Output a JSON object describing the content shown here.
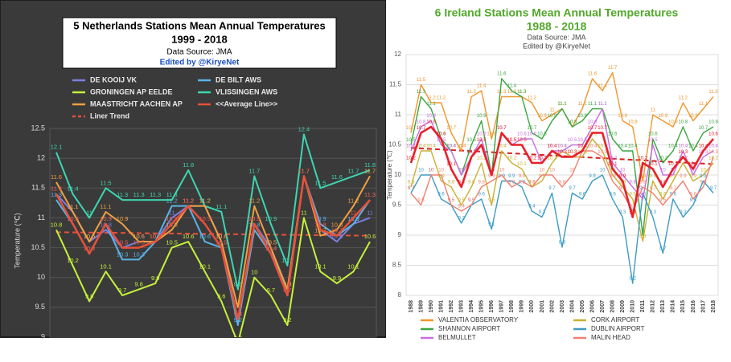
{
  "chart_data": [
    {
      "type": "line",
      "title": "5 Netherlands Stations Mean Annual Temperatures",
      "subtitle": "1999 - 2018",
      "source": "Data Source: JMA",
      "credit": "Edited by @KiryeNet",
      "ylabel": "Temperature (℃)",
      "categories": [
        null,
        null,
        null,
        null,
        null,
        null,
        null,
        null,
        null,
        null,
        null,
        null,
        null,
        null,
        null,
        null,
        null,
        null,
        null,
        null
      ],
      "ylim": [
        9,
        12.5
      ],
      "yticks": [
        9,
        9.5,
        10,
        10.5,
        11,
        11.5,
        12,
        12.5
      ],
      "grid": true,
      "legend_position": "top",
      "series": [
        {
          "name": "DE KOOIJ VK",
          "color": "#7b7fe0",
          "values": [
            11.4,
            11.1,
            10.6,
            10.8,
            10.5,
            10.6,
            10.6,
            11.0,
            11.2,
            11.2,
            10.6,
            9.3,
            10.9,
            10.5,
            9.7,
            11.7,
            10.8,
            10.6,
            10.9,
            11.0
          ]
        },
        {
          "name": "DE BILT AWS",
          "color": "#5ab4e6",
          "values": [
            11.3,
            10.9,
            10.4,
            10.9,
            10.3,
            10.3,
            10.6,
            11.2,
            11.2,
            10.6,
            10.5,
            9.2,
            10.8,
            10.4,
            9.8,
            11.7,
            10.9,
            10.7,
            10.9,
            11.3
          ]
        },
        {
          "name": "GRONINGEN AP EELDE",
          "color": "#c6f03c",
          "values": [
            10.8,
            10.2,
            9.6,
            10.1,
            9.7,
            9.8,
            9.9,
            10.5,
            10.6,
            10.1,
            9.6,
            8.9,
            10.0,
            9.7,
            9.2,
            11.0,
            10.1,
            9.9,
            10.1,
            10.6
          ]
        },
        {
          "name": "VLISSINGEN AWS",
          "color": "#3dd6b0",
          "values": [
            12.1,
            11.4,
            11.0,
            11.5,
            11.3,
            11.3,
            11.3,
            11.3,
            11.8,
            11.2,
            11.1,
            9.8,
            11.7,
            10.9,
            10.2,
            12.4,
            11.5,
            11.6,
            11.7,
            11.8
          ]
        },
        {
          "name": "MAASTRICHT AACHEN AP",
          "color": "#f0a040",
          "values": [
            11.6,
            11.1,
            10.6,
            11.1,
            10.9,
            10.6,
            10.6,
            10.8,
            11.2,
            11.2,
            10.6,
            9.5,
            11.2,
            10.5,
            9.8,
            11.7,
            10.7,
            10.8,
            11.2,
            11.7
          ]
        },
        {
          "name": "<<Average Line>>",
          "color": "#e8503a",
          "values": [
            11.4,
            10.9,
            10.4,
            10.9,
            10.5,
            10.5,
            10.6,
            10.9,
            11.2,
            10.9,
            10.5,
            9.3,
            10.9,
            10.4,
            9.7,
            11.7,
            10.8,
            10.7,
            11.0,
            11.3
          ]
        }
      ],
      "trend": {
        "name": "Liner Trend",
        "color": "#e8503a",
        "values": [
          10.76,
          10.7
        ]
      }
    },
    {
      "type": "line",
      "title": "6 Ireland Stations Mean Annual Temperatures",
      "subtitle": "1988 - 2018",
      "source": "Data Source: JMA",
      "credit": "Edited by @KiryeNet",
      "ylabel": "Temperature (℃)",
      "categories": [
        "1988",
        "1989",
        "1990",
        "1991",
        "1992",
        "1993",
        "1994",
        "1995",
        "1996",
        "1997",
        "1998",
        "1999",
        "2000",
        "2001",
        "2002",
        "2003",
        "2004",
        "2005",
        "2006",
        "2007",
        "2008",
        "2009",
        "2010",
        "2011",
        "2012",
        "2013",
        "2014",
        "2015",
        "2016",
        "2017",
        "2018"
      ],
      "ylim": [
        8,
        12
      ],
      "yticks": [
        8,
        8.5,
        9,
        9.5,
        10,
        10.5,
        11,
        11.5,
        12
      ],
      "grid": true,
      "legend_position": "bottom",
      "series": [
        {
          "name": "VALENTIA OBSERVATORY",
          "color": "#f0962c",
          "values": [
            10.7,
            11.5,
            11.2,
            11.2,
            10.7,
            10.4,
            11.3,
            11.4,
            10.6,
            11.3,
            11.3,
            11.3,
            11.2,
            10.9,
            11.0,
            11.1,
            10.8,
            11.1,
            11.6,
            11.4,
            11.7,
            10.9,
            10.8,
            9.9,
            11.0,
            10.9,
            10.8,
            11.2,
            10.9,
            11.1,
            11.3
          ]
        },
        {
          "name": "CORK AIRPORT",
          "color": "#c9b035",
          "values": [
            9.8,
            10.4,
            10.4,
            9.9,
            9.8,
            9.5,
            9.8,
            10.2,
            9.5,
            10.4,
            10.2,
            10.1,
            9.8,
            9.9,
            10.2,
            10.4,
            10.3,
            10.3,
            10.6,
            10.4,
            10.0,
            9.8,
            9.6,
            8.9,
            9.9,
            9.6,
            9.9,
            10.2,
            9.9,
            10.0,
            10.2
          ]
        },
        {
          "name": "SHANNON AIRPORT",
          "color": "#3aa640",
          "values": [
            10.5,
            11.3,
            11.1,
            10.6,
            10.4,
            10.0,
            10.5,
            10.9,
            10.0,
            11.6,
            11.4,
            11.3,
            10.7,
            10.6,
            10.9,
            11.1,
            10.8,
            10.9,
            11.1,
            11.1,
            10.6,
            10.4,
            10.4,
            9.0,
            10.6,
            10.2,
            10.4,
            10.8,
            10.4,
            10.7,
            10.8
          ]
        },
        {
          "name": "DUBLIN AIRPORT",
          "color": "#3d9bc4",
          "values": [
            9.7,
            10.0,
            10.0,
            9.6,
            9.5,
            9.2,
            9.5,
            9.6,
            9.1,
            9.9,
            9.9,
            9.8,
            9.4,
            9.3,
            9.7,
            8.8,
            9.7,
            9.6,
            9.9,
            10.0,
            9.6,
            9.3,
            8.2,
            9.7,
            9.3,
            8.7,
            9.6,
            9.3,
            9.5,
            9.9,
            9.7
          ]
        },
        {
          "name": "BELMULLET",
          "color": "#c86ee0",
          "values": [
            10.4,
            10.8,
            10.9,
            10.5,
            10.4,
            10.0,
            10.3,
            10.6,
            10.0,
            10.7,
            10.5,
            10.6,
            10.6,
            10.2,
            10.4,
            10.4,
            10.5,
            10.5,
            10.8,
            11.1,
            10.2,
            10.0,
            9.8,
            9.6,
            10.5,
            10.0,
            10.0,
            10.4,
            10.0,
            10.3,
            10.4
          ]
        },
        {
          "name": "MALIN HEAD",
          "color": "#f08070",
          "values": [
            9.7,
            9.5,
            10.0,
            10.0,
            9.5,
            9.4,
            9.5,
            9.8,
            9.9,
            10.0,
            9.8,
            9.9,
            9.8,
            10.0,
            10.0,
            9.8,
            10.0,
            10.4,
            10.4,
            10.3,
            9.9,
            9.7,
            9.4,
            9.8,
            9.7,
            9.5,
            9.7,
            9.9,
            9.6,
            9.8,
            10.3
          ]
        },
        {
          "color": "#e8202a",
          "values": [
            10.2,
            10.7,
            10.8,
            10.6,
            10.1,
            9.8,
            10.3,
            10.5,
            10.0,
            10.7,
            10.5,
            10.5,
            10.2,
            10.2,
            10.4,
            10.3,
            10.3,
            10.4,
            10.7,
            10.7,
            10.1,
            9.9,
            9.3,
            10.2,
            10.1,
            9.8,
            10.1,
            10.3,
            10.1,
            10.4,
            10.6
          ]
        }
      ],
      "trend": {
        "color": "#d81e1e",
        "values": [
          10.45,
          10.18
        ]
      }
    }
  ]
}
